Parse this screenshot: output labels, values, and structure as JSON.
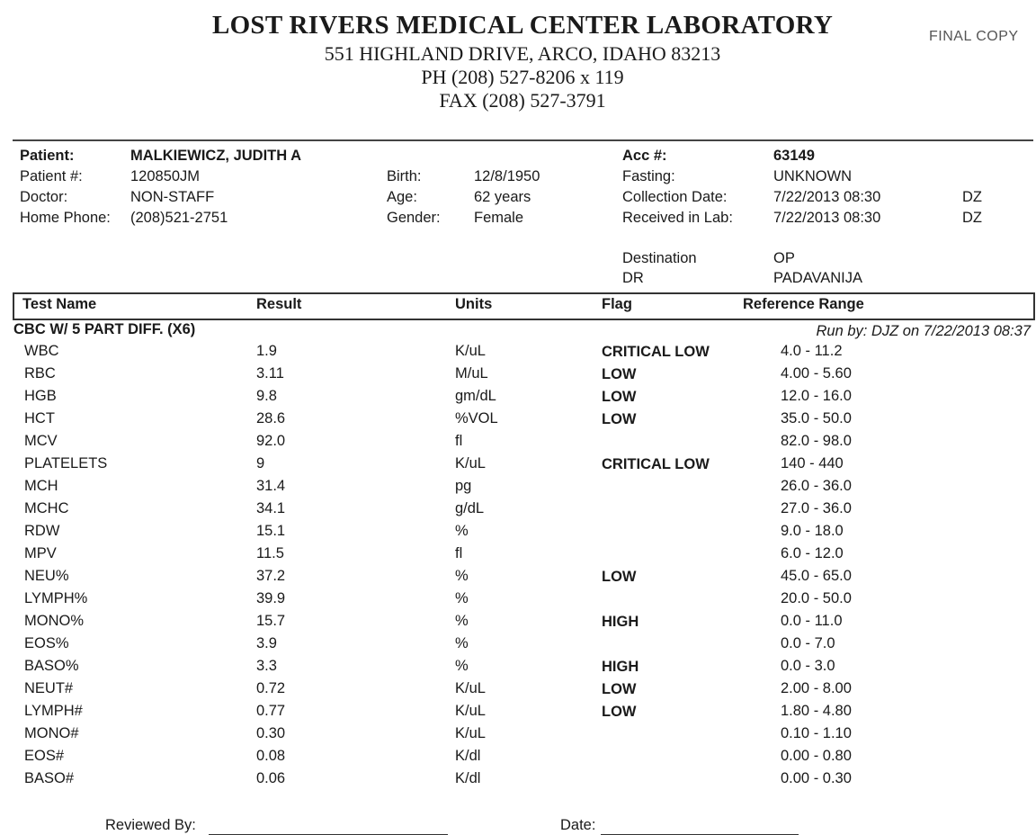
{
  "header": {
    "lab_name": "LOST RIVERS MEDICAL CENTER LABORATORY",
    "address": "551 HIGHLAND DRIVE, ARCO, IDAHO 83213",
    "phone": "PH (208) 527-8206 x 119",
    "fax": "FAX (208) 527-3791",
    "copy_label": "FINAL COPY"
  },
  "patient": {
    "patient_label": "Patient:",
    "patient_value": "MALKIEWICZ, JUDITH A",
    "number_label": "Patient #:",
    "number_value": "120850JM",
    "doctor_label": "Doctor:",
    "doctor_value": "NON-STAFF",
    "phone_label": "Home Phone:",
    "phone_value": "(208)521-2751",
    "birth_label": "Birth:",
    "birth_value": "12/8/1950",
    "age_label": "Age:",
    "age_value": "62 years",
    "gender_label": "Gender:",
    "gender_value": "Female",
    "acc_label": "Acc #:",
    "acc_value": "63149",
    "fasting_label": "Fasting:",
    "fasting_value": "UNKNOWN",
    "collection_label": "Collection Date:",
    "collection_value": "7/22/2013 08:30",
    "collection_by": "DZ",
    "received_label": "Received in Lab:",
    "received_value": "7/22/2013 08:30",
    "received_by": "DZ",
    "destination_label": "Destination",
    "destination_value": "OP",
    "dr_label": "DR",
    "dr_value": "PADAVANIJA"
  },
  "table": {
    "headers": {
      "name": "Test Name",
      "result": "Result",
      "units": "Units",
      "flag": "Flag",
      "range": "Reference Range"
    },
    "panel": "CBC W/ 5 PART DIFF. (X6)",
    "run_by": "Run by: DJZ on 7/22/2013 08:37",
    "rows": [
      {
        "name": "WBC",
        "result": "1.9",
        "units": "K/uL",
        "flag": "CRITICAL LOW",
        "range": "4.0 - 11.2"
      },
      {
        "name": "RBC",
        "result": "3.11",
        "units": "M/uL",
        "flag": "LOW",
        "range": "4.00 - 5.60"
      },
      {
        "name": "HGB",
        "result": "9.8",
        "units": "gm/dL",
        "flag": "LOW",
        "range": "12.0 - 16.0"
      },
      {
        "name": "HCT",
        "result": "28.6",
        "units": "%VOL",
        "flag": "LOW",
        "range": "35.0 - 50.0"
      },
      {
        "name": "MCV",
        "result": "92.0",
        "units": "fl",
        "flag": "",
        "range": "82.0 - 98.0"
      },
      {
        "name": "PLATELETS",
        "result": "9",
        "units": "K/uL",
        "flag": "CRITICAL LOW",
        "range": "140 - 440"
      },
      {
        "name": "MCH",
        "result": "31.4",
        "units": "pg",
        "flag": "",
        "range": "26.0 - 36.0"
      },
      {
        "name": "MCHC",
        "result": "34.1",
        "units": "g/dL",
        "flag": "",
        "range": "27.0 - 36.0"
      },
      {
        "name": "RDW",
        "result": "15.1",
        "units": "%",
        "flag": "",
        "range": "9.0 - 18.0"
      },
      {
        "name": "MPV",
        "result": "11.5",
        "units": "fl",
        "flag": "",
        "range": "6.0 - 12.0"
      },
      {
        "name": "NEU%",
        "result": "37.2",
        "units": "%",
        "flag": "LOW",
        "range": "45.0 - 65.0"
      },
      {
        "name": "LYMPH%",
        "result": "39.9",
        "units": "%",
        "flag": "",
        "range": "20.0 - 50.0"
      },
      {
        "name": "MONO%",
        "result": "15.7",
        "units": "%",
        "flag": "HIGH",
        "range": "0.0 - 11.0"
      },
      {
        "name": "EOS%",
        "result": "3.9",
        "units": "%",
        "flag": "",
        "range": "0.0 - 7.0"
      },
      {
        "name": "BASO%",
        "result": "3.3",
        "units": "%",
        "flag": "HIGH",
        "range": "0.0 - 3.0"
      },
      {
        "name": "NEUT#",
        "result": "0.72",
        "units": "K/uL",
        "flag": "LOW",
        "range": "2.00 - 8.00"
      },
      {
        "name": "LYMPH#",
        "result": "0.77",
        "units": "K/uL",
        "flag": "LOW",
        "range": "1.80 - 4.80"
      },
      {
        "name": "MONO#",
        "result": "0.30",
        "units": "K/uL",
        "flag": "",
        "range": "0.10 - 1.10"
      },
      {
        "name": "EOS#",
        "result": "0.08",
        "units": "K/dl",
        "flag": "",
        "range": "0.00 - 0.80"
      },
      {
        "name": "BASO#",
        "result": "0.06",
        "units": "K/dl",
        "flag": "",
        "range": "0.00 - 0.30"
      }
    ]
  },
  "footer": {
    "reviewed_label": "Reviewed By:",
    "date_label": "Date:"
  }
}
